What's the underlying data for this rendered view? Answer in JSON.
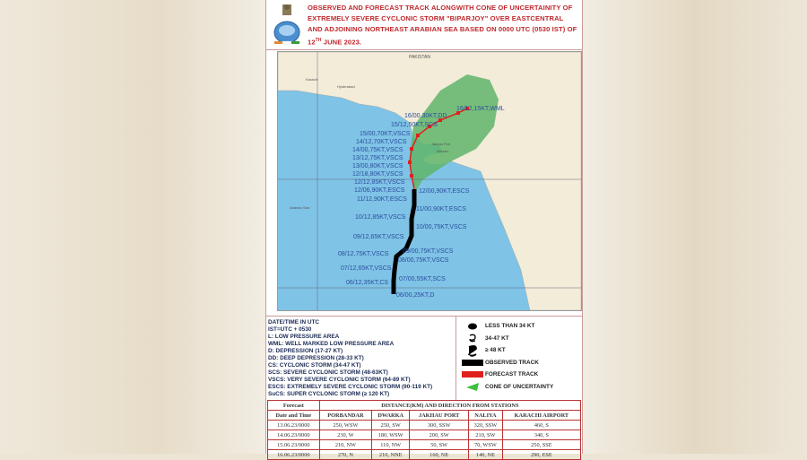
{
  "header": {
    "title": "OBSERVED AND FORECAST TRACK ALONGWITH CONE OF UNCERTAINITY OF EXTREMELY SEVERE CYCLONIC STORM \"BIPARJOY\" OVER EASTCENTRAL AND ADJOINING NORTHEAST ARABIAN SEA BASED ON 0000 UTC (0530 IST)  OF 12",
    "title_sup": "TH",
    "title_end": " JUNE 2023.",
    "logo": "IMD emblem"
  },
  "map": {
    "places": [
      "PAKISTAN",
      "Karachi",
      "Hyderabad",
      "Jakhau Port",
      "Mandvi",
      "Arabian Sea"
    ],
    "track_labels": [
      "16/12,15KT,WML",
      "16/00,30KT,DD",
      "15/12,50KT,SCS",
      "15/00,70KT,VSCS",
      "14/12,70KT,VSCS",
      "14/00,75KT,VSCS",
      "13/12,75KT,VSCS",
      "13/00,80KT,VSCS",
      "12/18,80KT,VSCS",
      "12/12,85KT,VSCS",
      "12/06,90KT,ESCS",
      "12/00,90KT,ESCS",
      "11/12,90KT,ESCS",
      "11/00,90KT,ESCS",
      "10/12,85KT,VSCS",
      "10/00,75KT,VSCS",
      "09/12,65KT,VSCS",
      "09/00,75KT,VSCS",
      "08/12,75KT,VSCS",
      "08/00,75KT,VSCS",
      "07/12,65KT,VSCS",
      "07/00,55KT,SCS",
      "06/12,35KT,CS",
      "06/00,25KT,D"
    ],
    "colors": {
      "ocean": "#7fc3e6",
      "land": "#f3ecd9",
      "cone": "#5fb56a",
      "observed": "#000000",
      "forecast": "#e0201c",
      "label": "#2c4f9e"
    }
  },
  "legend": {
    "left": [
      "DATE/TIME IN UTC",
      "IST=UTC + 0530",
      "L: LOW PRESSURE AREA",
      "WML: WELL MARKED LOW PRESSURE AREA",
      "D: DEPRESSION (17-27 KT)",
      "DD: DEEP DEPRESSION (28-33 KT)",
      "CS: CYCLONIC STORM (34-47 KT)",
      "SCS: SEVERE CYCLONIC STORM (48-63KT)",
      "VSCS: VERY SEVERE CYCLONIC STORM (64-89 KT)",
      "ESCS: EXTREMELY SEVERE CYCLONIC STORM (90-119 KT)",
      "SuCS: SUPER CYCLONIC STORM (≥ 120 KT)"
    ],
    "right": [
      {
        "icon": "filled-dot-icon",
        "label": "LESS THAN 34 KT"
      },
      {
        "icon": "small-cyclone-icon",
        "label": "34-47 KT"
      },
      {
        "icon": "large-cyclone-icon",
        "label": "≥ 48 KT"
      },
      {
        "icon": "black-bar-icon",
        "label": "OBSERVED TRACK"
      },
      {
        "icon": "red-bar-icon",
        "label": "FORECAST TRACK"
      },
      {
        "icon": "green-cone-icon",
        "label": "CONE OF UNCERTAINTY"
      }
    ]
  },
  "table": {
    "h1": "Forecast",
    "h2": "DISTANCE(KM) AND DIRECTION FROM STATIONS",
    "h3": "Date and Time",
    "stations": [
      "PORBANDAR",
      "DWARKA",
      "JAKHAU PORT",
      "NALIYA",
      "KARACHI AIRPORT"
    ],
    "rows": [
      [
        "13.06.23/0000",
        "250, WSW",
        "250, SW",
        "300, SSW",
        "320, SSW",
        "460, S"
      ],
      [
        "14.06.23/0000",
        "230, W",
        "180, WSW",
        "200, SW",
        "210, SW",
        "340, S"
      ],
      [
        "15.06.23/0000",
        "210, NW",
        "110, NW",
        "50, SW",
        "70, WSW",
        "250, SSE"
      ],
      [
        "16.06.23/0000",
        "270, N",
        "210, NNE",
        "160, NE",
        "140, NE",
        "290, ESE"
      ]
    ]
  }
}
